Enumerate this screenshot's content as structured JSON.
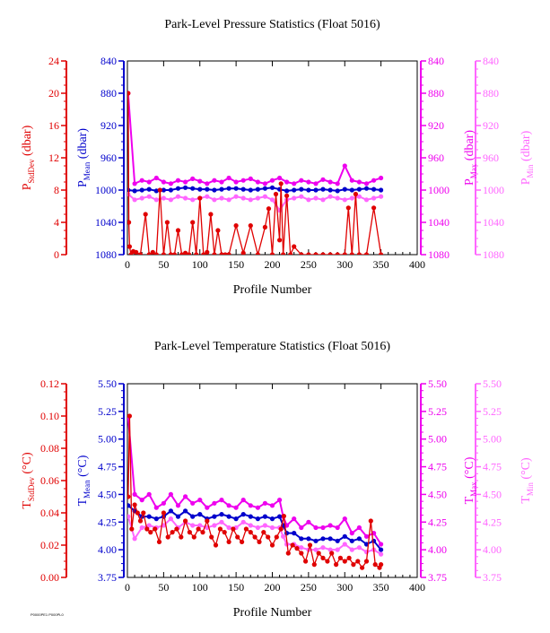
{
  "colors": {
    "stddev": "#e00000",
    "mean": "#0000cc",
    "max": "#ee00ee",
    "min": "#ff66ff",
    "axis": "#000000"
  },
  "footnote": "P0000PE1 P000PL0",
  "chart_data": [
    {
      "type": "line",
      "title": "Park-Level Pressure Statistics (Float 5016)",
      "xlabel": "Profile Number",
      "xlim": [
        0,
        400
      ],
      "xticks": [
        "0",
        "50",
        "100",
        "150",
        "200",
        "250",
        "300",
        "350",
        "400"
      ],
      "axes": {
        "stddev": {
          "label_main": "P",
          "label_sub": "StdDev",
          "label_unit": " (dbar)",
          "lim": [
            0,
            24
          ],
          "ticks": [
            "0",
            "4",
            "8",
            "12",
            "16",
            "20",
            "24"
          ]
        },
        "mean": {
          "label_main": "P",
          "label_sub": "Mean",
          "label_unit": " (dbar)",
          "lim": [
            1080,
            840
          ],
          "ticks": [
            "1080",
            "1040",
            "1000",
            "960",
            "920",
            "880",
            "840"
          ]
        },
        "max": {
          "label_main": "P",
          "label_sub": "Max",
          "label_unit": " (dbar)",
          "lim": [
            1080,
            840
          ],
          "ticks": [
            "1080",
            "1040",
            "1000",
            "960",
            "920",
            "880",
            "840"
          ]
        },
        "min": {
          "label_main": "P",
          "label_sub": "Min",
          "label_unit": " (dbar)",
          "lim": [
            1080,
            840
          ],
          "ticks": [
            "1080",
            "1040",
            "1000",
            "960",
            "920",
            "880",
            "840"
          ]
        }
      },
      "series": [
        {
          "axis": "mean",
          "x": [
            1,
            10,
            20,
            30,
            40,
            50,
            60,
            70,
            80,
            90,
            100,
            110,
            120,
            130,
            140,
            150,
            160,
            170,
            180,
            190,
            200,
            210,
            220,
            230,
            240,
            250,
            260,
            270,
            280,
            290,
            300,
            310,
            320,
            330,
            340,
            350
          ],
          "y": [
            1000,
            1001,
            1000,
            999,
            1001,
            1000,
            1000,
            998,
            997,
            998,
            999,
            999,
            1000,
            999,
            998,
            998,
            999,
            1000,
            999,
            998,
            997,
            999,
            1001,
            1000,
            999,
            1000,
            1000,
            999,
            1000,
            1001,
            999,
            1000,
            999,
            998,
            999,
            1000
          ]
        },
        {
          "axis": "max",
          "x": [
            1,
            10,
            20,
            30,
            40,
            50,
            60,
            70,
            80,
            90,
            100,
            110,
            120,
            130,
            140,
            150,
            160,
            170,
            180,
            190,
            200,
            210,
            220,
            230,
            240,
            250,
            260,
            270,
            280,
            290,
            300,
            310,
            320,
            330,
            340,
            350
          ],
          "y": [
            880,
            992,
            988,
            990,
            985,
            990,
            992,
            988,
            990,
            986,
            989,
            992,
            988,
            990,
            985,
            990,
            988,
            986,
            990,
            992,
            988,
            985,
            990,
            992,
            988,
            990,
            992,
            987,
            990,
            992,
            970,
            988,
            990,
            992,
            988,
            985
          ]
        },
        {
          "axis": "min",
          "x": [
            1,
            10,
            20,
            30,
            40,
            50,
            60,
            70,
            80,
            90,
            100,
            110,
            120,
            130,
            140,
            150,
            160,
            170,
            180,
            190,
            200,
            210,
            220,
            230,
            240,
            250,
            260,
            270,
            280,
            290,
            300,
            310,
            320,
            330,
            340,
            350
          ],
          "y": [
            1005,
            1012,
            1010,
            1008,
            1012,
            1010,
            1012,
            1008,
            1010,
            1012,
            1010,
            1008,
            1012,
            1010,
            1012,
            1008,
            1010,
            1012,
            1010,
            1008,
            1012,
            1025,
            1012,
            1010,
            1008,
            1012,
            1010,
            1012,
            1008,
            1010,
            1012,
            1010,
            1008,
            1012,
            1010,
            1008
          ]
        },
        {
          "axis": "stddev",
          "x": [
            1,
            2,
            3,
            5,
            8,
            12,
            18,
            25,
            30,
            35,
            40,
            45,
            50,
            55,
            60,
            65,
            70,
            75,
            80,
            85,
            90,
            95,
            100,
            105,
            110,
            115,
            120,
            125,
            130,
            135,
            140,
            150,
            160,
            170,
            180,
            190,
            195,
            200,
            205,
            210,
            212,
            215,
            220,
            225,
            230,
            240,
            250,
            260,
            270,
            280,
            290,
            300,
            305,
            310,
            315,
            320,
            330,
            340,
            350
          ],
          "y": [
            20,
            4,
            1,
            0,
            0.4,
            0.3,
            0,
            5,
            0,
            0.3,
            0,
            8,
            0,
            4,
            0,
            0,
            3,
            0,
            0.2,
            0,
            4,
            0,
            7,
            0,
            0.3,
            5,
            0,
            3,
            0,
            0,
            0,
            3.6,
            0.2,
            3.6,
            0,
            3.4,
            5.7,
            0,
            7.5,
            1.8,
            8.8,
            0,
            7.3,
            0,
            1,
            0,
            0,
            0,
            0,
            0,
            0,
            0,
            5.8,
            0,
            7.5,
            0,
            0,
            5.8,
            0
          ]
        }
      ]
    },
    {
      "type": "line",
      "title": "Park-Level Temperature Statistics (Float 5016)",
      "xlabel": "Profile Number",
      "xlim": [
        0,
        400
      ],
      "xticks": [
        "0",
        "50",
        "100",
        "150",
        "200",
        "250",
        "300",
        "350",
        "400"
      ],
      "axes": {
        "stddev": {
          "label_main": "T",
          "label_sub": "StdDev",
          "label_unit": " (°C)",
          "lim": [
            0,
            0.12
          ],
          "ticks": [
            "0.00",
            "0.02",
            "0.04",
            "0.06",
            "0.08",
            "0.10",
            "0.12"
          ]
        },
        "mean": {
          "label_main": "T",
          "label_sub": "Mean",
          "label_unit": " (°C)",
          "lim": [
            3.75,
            5.5
          ],
          "ticks": [
            "3.75",
            "4.00",
            "4.25",
            "4.50",
            "4.75",
            "5.00",
            "5.25",
            "5.50"
          ]
        },
        "max": {
          "label_main": "T",
          "label_sub": "Max",
          "label_unit": " (°C)",
          "lim": [
            3.75,
            5.5
          ],
          "ticks": [
            "3.75",
            "4.00",
            "4.25",
            "4.50",
            "4.75",
            "5.00",
            "5.25",
            "5.50"
          ]
        },
        "min": {
          "label_main": "T",
          "label_sub": "Min",
          "label_unit": " (°C)",
          "lim": [
            3.75,
            5.5
          ],
          "ticks": [
            "3.75",
            "4.00",
            "4.25",
            "4.50",
            "4.75",
            "5.00",
            "5.25",
            "5.50"
          ]
        }
      },
      "series": [
        {
          "axis": "max",
          "x": [
            1,
            10,
            20,
            30,
            40,
            50,
            60,
            70,
            80,
            90,
            100,
            110,
            120,
            130,
            140,
            150,
            160,
            170,
            180,
            190,
            200,
            210,
            215,
            220,
            230,
            240,
            250,
            260,
            270,
            280,
            290,
            300,
            310,
            320,
            330,
            340,
            350
          ],
          "y": [
            5.2,
            4.5,
            4.45,
            4.5,
            4.38,
            4.42,
            4.5,
            4.4,
            4.48,
            4.42,
            4.45,
            4.38,
            4.42,
            4.45,
            4.4,
            4.38,
            4.45,
            4.4,
            4.38,
            4.42,
            4.4,
            4.45,
            4.3,
            4.22,
            4.28,
            4.2,
            4.25,
            4.2,
            4.2,
            4.22,
            4.2,
            4.28,
            4.15,
            4.2,
            4.12,
            4.15,
            4.05
          ]
        },
        {
          "axis": "mean",
          "x": [
            1,
            10,
            20,
            30,
            40,
            50,
            60,
            70,
            80,
            90,
            100,
            110,
            120,
            130,
            140,
            150,
            160,
            170,
            180,
            190,
            200,
            210,
            215,
            220,
            230,
            240,
            250,
            260,
            270,
            280,
            290,
            300,
            310,
            320,
            330,
            340,
            350
          ],
          "y": [
            4.4,
            4.35,
            4.3,
            4.3,
            4.28,
            4.3,
            4.35,
            4.3,
            4.35,
            4.3,
            4.32,
            4.28,
            4.3,
            4.32,
            4.3,
            4.28,
            4.32,
            4.3,
            4.28,
            4.3,
            4.28,
            4.3,
            4.22,
            4.15,
            4.15,
            4.1,
            4.1,
            4.08,
            4.1,
            4.1,
            4.08,
            4.12,
            4.08,
            4.1,
            4.05,
            4.08,
            4.0
          ]
        },
        {
          "axis": "min",
          "x": [
            1,
            10,
            20,
            30,
            40,
            50,
            60,
            70,
            80,
            90,
            100,
            110,
            120,
            130,
            140,
            150,
            160,
            170,
            180,
            190,
            200,
            210,
            215,
            220,
            230,
            240,
            250,
            260,
            270,
            280,
            290,
            300,
            310,
            320,
            330,
            340,
            350
          ],
          "y": [
            4.3,
            4.1,
            4.2,
            4.22,
            4.2,
            4.22,
            4.28,
            4.2,
            4.25,
            4.22,
            4.22,
            4.2,
            4.22,
            4.25,
            4.2,
            4.2,
            4.25,
            4.22,
            4.2,
            4.22,
            4.2,
            4.2,
            4.12,
            4.05,
            4.05,
            4.02,
            4.0,
            4.0,
            4.02,
            4.0,
            4.0,
            4.05,
            4.0,
            4.02,
            3.98,
            4.0,
            3.96
          ]
        },
        {
          "axis": "stddev",
          "x": [
            1,
            3,
            6,
            10,
            14,
            18,
            22,
            27,
            32,
            38,
            44,
            50,
            56,
            62,
            68,
            74,
            80,
            86,
            92,
            98,
            104,
            110,
            116,
            122,
            128,
            134,
            140,
            146,
            152,
            158,
            164,
            170,
            176,
            182,
            188,
            194,
            200,
            206,
            212,
            216,
            222,
            228,
            234,
            240,
            246,
            252,
            258,
            264,
            270,
            276,
            282,
            288,
            294,
            300,
            306,
            312,
            318,
            324,
            330,
            336,
            342,
            348,
            350
          ],
          "y": [
            0.05,
            0.1,
            0.03,
            0.045,
            0.04,
            0.035,
            0.04,
            0.03,
            0.028,
            0.03,
            0.022,
            0.04,
            0.025,
            0.028,
            0.03,
            0.025,
            0.035,
            0.028,
            0.025,
            0.03,
            0.028,
            0.035,
            0.025,
            0.02,
            0.03,
            0.028,
            0.022,
            0.03,
            0.025,
            0.022,
            0.03,
            0.028,
            0.025,
            0.022,
            0.028,
            0.025,
            0.02,
            0.025,
            0.03,
            0.038,
            0.015,
            0.02,
            0.018,
            0.015,
            0.01,
            0.02,
            0.008,
            0.015,
            0.012,
            0.01,
            0.015,
            0.008,
            0.012,
            0.01,
            0.012,
            0.008,
            0.01,
            0.006,
            0.01,
            0.035,
            0.008,
            0.006,
            0.008
          ]
        }
      ]
    }
  ]
}
